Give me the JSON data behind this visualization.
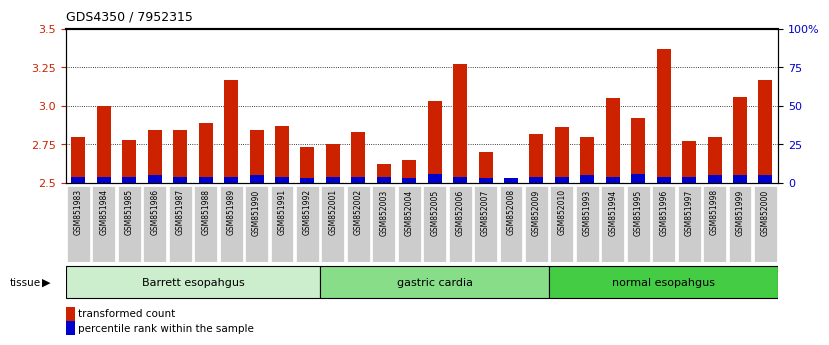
{
  "title": "GDS4350 / 7952315",
  "samples": [
    "GSM851983",
    "GSM851984",
    "GSM851985",
    "GSM851986",
    "GSM851987",
    "GSM851988",
    "GSM851989",
    "GSM851990",
    "GSM851991",
    "GSM851992",
    "GSM852001",
    "GSM852002",
    "GSM852003",
    "GSM852004",
    "GSM852005",
    "GSM852006",
    "GSM852007",
    "GSM852008",
    "GSM852009",
    "GSM852010",
    "GSM851993",
    "GSM851994",
    "GSM851995",
    "GSM851996",
    "GSM851997",
    "GSM851998",
    "GSM851999",
    "GSM852000"
  ],
  "red_values": [
    2.8,
    3.0,
    2.78,
    2.84,
    2.84,
    2.89,
    3.17,
    2.84,
    2.87,
    2.73,
    2.75,
    2.83,
    2.62,
    2.65,
    3.03,
    3.27,
    2.7,
    2.52,
    2.82,
    2.86,
    2.8,
    3.05,
    2.92,
    3.37,
    2.77,
    2.8,
    3.06,
    3.17
  ],
  "blue_values": [
    0.04,
    0.04,
    0.04,
    0.05,
    0.04,
    0.04,
    0.04,
    0.05,
    0.04,
    0.03,
    0.04,
    0.04,
    0.04,
    0.03,
    0.06,
    0.04,
    0.03,
    0.03,
    0.04,
    0.04,
    0.05,
    0.04,
    0.06,
    0.04,
    0.04,
    0.05,
    0.05,
    0.05
  ],
  "groups": [
    {
      "label": "Barrett esopahgus",
      "start": 0,
      "end": 9
    },
    {
      "label": "gastric cardia",
      "start": 10,
      "end": 18
    },
    {
      "label": "normal esopahgus",
      "start": 19,
      "end": 27
    }
  ],
  "group_colors": [
    "#cceecc",
    "#88dd88",
    "#44cc44"
  ],
  "y_min": 2.5,
  "y_max": 3.5,
  "y_ticks_left": [
    2.5,
    2.75,
    3.0,
    3.25,
    3.5
  ],
  "y_ticks_right": [
    0,
    25,
    50,
    75,
    100
  ],
  "right_tick_labels": [
    "0",
    "25",
    "50",
    "75",
    "100%"
  ],
  "bar_color_red": "#cc2200",
  "bar_color_blue": "#0000cc",
  "bar_width": 0.55,
  "background_color": "#ffffff",
  "axis_color_left": "#cc2200",
  "axis_color_right": "#0000cc",
  "legend_red": "transformed count",
  "legend_blue": "percentile rank within the sample",
  "xticklabel_bg": "#dddddd",
  "dotted_lines": [
    2.75,
    3.0,
    3.25
  ]
}
